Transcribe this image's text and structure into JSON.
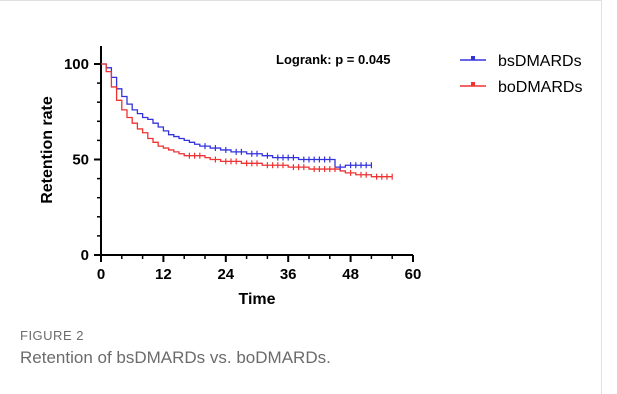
{
  "figure": {
    "label": "FIGURE 2",
    "caption": "Retention of bsDMARDs vs. boDMARDs."
  },
  "chart_data": {
    "type": "line",
    "step": true,
    "xlabel": "Time",
    "ylabel": "Retention rate",
    "xlim": [
      0,
      60
    ],
    "ylim": [
      0,
      100
    ],
    "x_ticks": [
      0,
      12,
      24,
      36,
      48,
      60
    ],
    "y_ticks": [
      0,
      50,
      100
    ],
    "annotation": "Logrank: p = 0.045",
    "legend_position": "top-right",
    "series": [
      {
        "name": "bsDMARDs",
        "color": "#3333dd",
        "x": [
          0,
          1,
          2,
          3,
          4,
          5,
          6,
          7,
          8,
          9,
          10,
          11,
          12,
          13,
          14,
          15,
          16,
          17,
          18,
          19,
          20,
          21,
          22,
          23,
          24,
          25,
          26,
          27,
          28,
          29,
          30,
          31,
          32,
          33,
          34,
          35,
          36,
          37,
          38,
          39,
          40,
          41,
          42,
          43,
          44,
          45,
          46,
          47,
          48,
          49,
          50,
          51,
          52
        ],
        "y": [
          100,
          98,
          93,
          87,
          83,
          79,
          76,
          74,
          72,
          71,
          69,
          67,
          65,
          63,
          62,
          61,
          60,
          59,
          58,
          57,
          57,
          56,
          56,
          55,
          55,
          54,
          54,
          54,
          53,
          53,
          53,
          52,
          52,
          51,
          51,
          51,
          51,
          51,
          50,
          50,
          50,
          50,
          50,
          50,
          50,
          46,
          46,
          47,
          47,
          47,
          47,
          47,
          47
        ]
      },
      {
        "name": "boDMARDs",
        "color": "#ee3333",
        "x": [
          0,
          1,
          2,
          3,
          4,
          5,
          6,
          7,
          8,
          9,
          10,
          11,
          12,
          13,
          14,
          15,
          16,
          17,
          18,
          19,
          20,
          21,
          22,
          23,
          24,
          25,
          26,
          27,
          28,
          29,
          30,
          31,
          32,
          33,
          34,
          35,
          36,
          37,
          38,
          39,
          40,
          41,
          42,
          43,
          44,
          45,
          46,
          47,
          48,
          49,
          50,
          51,
          52,
          53,
          54,
          55,
          56
        ],
        "y": [
          100,
          96,
          88,
          81,
          76,
          72,
          69,
          66,
          64,
          61,
          59,
          57,
          56,
          55,
          54,
          53,
          52,
          52,
          52,
          52,
          51,
          50,
          50,
          49,
          49,
          49,
          49,
          48,
          48,
          48,
          48,
          47,
          47,
          47,
          47,
          47,
          46,
          46,
          46,
          46,
          45,
          45,
          45,
          45,
          45,
          45,
          44,
          43,
          43,
          42,
          42,
          42,
          41,
          41,
          41,
          41,
          41
        ]
      }
    ]
  }
}
